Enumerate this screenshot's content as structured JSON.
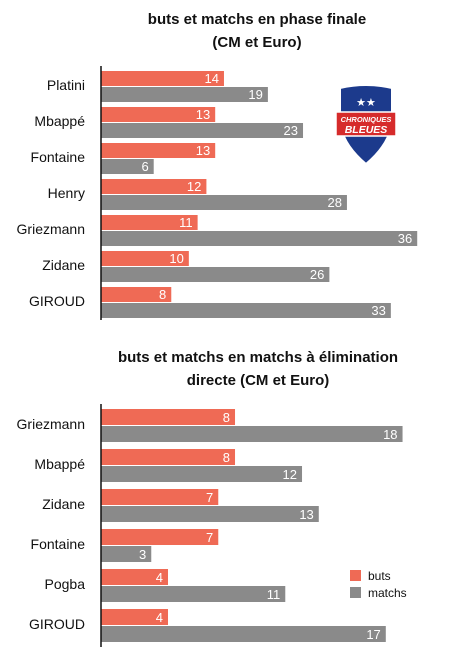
{
  "colors": {
    "buts": "#ef6a55",
    "matchs": "#8a8a8a",
    "axis": "#111111"
  },
  "logo": {
    "line1": "CHRONIQUES",
    "line2": "BLEUES",
    "shield_color": "#1c3a8c",
    "band_color": "#d62b2b"
  },
  "chart_data": [
    {
      "type": "bar",
      "orientation": "horizontal",
      "title": [
        "buts et matchs en phase finale",
        "(CM et Euro)"
      ],
      "categories": [
        "Platini",
        "Mbappé",
        "Fontaine",
        "Henry",
        "Griezmann",
        "Zidane",
        "GIROUD"
      ],
      "series": [
        {
          "name": "buts",
          "values": [
            14,
            13,
            13,
            12,
            11,
            10,
            8
          ]
        },
        {
          "name": "matchs",
          "values": [
            19,
            23,
            6,
            28,
            36,
            26,
            33
          ]
        }
      ],
      "xlim": [
        0,
        37
      ]
    },
    {
      "type": "bar",
      "orientation": "horizontal",
      "title": [
        "buts et matchs en matchs à élimination",
        "directe (CM et Euro)"
      ],
      "categories": [
        "Griezmann",
        "Mbappé",
        "Zidane",
        "Fontaine",
        "Pogba",
        "GIROUD"
      ],
      "series": [
        {
          "name": "buts",
          "values": [
            8,
            8,
            7,
            7,
            4,
            4
          ]
        },
        {
          "name": "matchs",
          "values": [
            18,
            12,
            13,
            3,
            11,
            17
          ]
        }
      ],
      "xlim": [
        0,
        19.4
      ],
      "legend": {
        "position": "bottom-right",
        "entries": [
          "buts",
          "matchs"
        ]
      }
    }
  ]
}
